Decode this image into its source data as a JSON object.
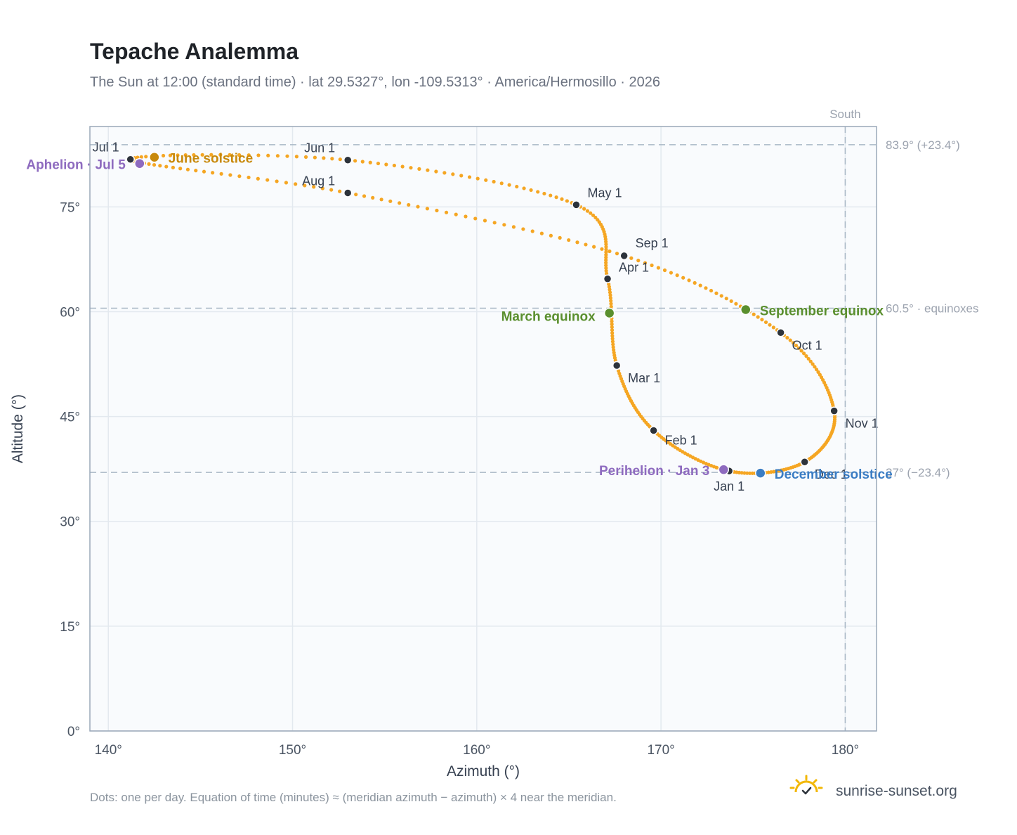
{
  "title": "Tepache Analemma",
  "subtitle": "The Sun at 12:00 (standard time) · lat 29.5327°, lon -109.5313° · America/Hermosillo · 2026",
  "footnote": "Dots: one per day. Equation of time (minutes) ≈ (meridian azimuth − azimuth) × 4 near the meridian.",
  "brand": "sunrise-sunset.org",
  "colors": {
    "analemma": "#f5a623",
    "month_marker": "#2d333b",
    "june_solstice": "#c8890b",
    "december_solstice": "#3b7dc4",
    "equinox": "#5a8f2e",
    "apsis": "#8e6bbf",
    "reference_line": "#a9b8c6",
    "plot_bg": "#f9fbfd",
    "grid": "#e3e9ef"
  },
  "chart_data": {
    "type": "scatter",
    "title": "Tepache Analemma",
    "xlabel": "Azimuth (°)",
    "ylabel": "Altitude (°)",
    "xlim": [
      139,
      181.7
    ],
    "ylim": [
      0,
      86.5
    ],
    "x_ticks": [
      140,
      150,
      160,
      170,
      180
    ],
    "x_tick_labels": [
      "140°",
      "150°",
      "160°",
      "170°",
      "180°"
    ],
    "y_ticks": [
      0,
      15,
      30,
      45,
      60,
      75
    ],
    "y_tick_labels": [
      "0°",
      "15°",
      "30°",
      "45°",
      "60°",
      "75°"
    ],
    "grid": true,
    "meridian_label": "South",
    "meridian_azimuth": 180,
    "reference_lines": [
      {
        "altitude": 83.9,
        "label": "83.9° (+23.4°)"
      },
      {
        "altitude": 60.5,
        "label": "60.5° · equinoxes"
      },
      {
        "altitude": 37.0,
        "label": "37° (−23.4°)"
      }
    ],
    "month_markers": [
      {
        "label": "Jan 1",
        "azimuth": 173.7,
        "altitude": 37.2
      },
      {
        "label": "Feb 1",
        "azimuth": 169.6,
        "altitude": 43.0
      },
      {
        "label": "Mar 1",
        "azimuth": 167.6,
        "altitude": 52.3
      },
      {
        "label": "Apr 1",
        "azimuth": 167.1,
        "altitude": 64.7
      },
      {
        "label": "May 1",
        "azimuth": 165.4,
        "altitude": 75.3
      },
      {
        "label": "Jun 1",
        "azimuth": 153.0,
        "altitude": 81.7
      },
      {
        "label": "Jul 1",
        "azimuth": 141.2,
        "altitude": 81.8
      },
      {
        "label": "Aug 1",
        "azimuth": 153.0,
        "altitude": 77.0
      },
      {
        "label": "Sep 1",
        "azimuth": 168.0,
        "altitude": 68.0
      },
      {
        "label": "Oct 1",
        "azimuth": 176.5,
        "altitude": 57.0
      },
      {
        "label": "Nov 1",
        "azimuth": 179.4,
        "altitude": 45.8
      },
      {
        "label": "Dec 1",
        "azimuth": 177.8,
        "altitude": 38.5
      }
    ],
    "events": [
      {
        "label": "June solstice",
        "azimuth": 142.5,
        "altitude": 82.1,
        "color": "#c8890b"
      },
      {
        "label": "Aphelion · Jul 5",
        "azimuth": 141.7,
        "altitude": 81.2,
        "color": "#8e6bbf"
      },
      {
        "label": "March equinox",
        "azimuth": 167.2,
        "altitude": 59.8,
        "color": "#5a8f2e"
      },
      {
        "label": "September equinox",
        "azimuth": 174.6,
        "altitude": 60.3,
        "color": "#5a8f2e"
      },
      {
        "label": "Perihelion · Jan 3",
        "azimuth": 173.4,
        "altitude": 37.4,
        "color": "#8e6bbf"
      },
      {
        "label": "December solstice",
        "azimuth": 175.4,
        "altitude": 36.9,
        "color": "#3b7dc4"
      }
    ]
  }
}
